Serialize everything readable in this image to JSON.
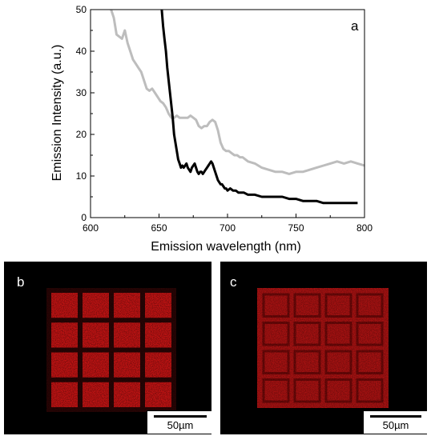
{
  "chart_data": {
    "type": "line",
    "panel_label": "a",
    "xlabel": "Emission wavelength (nm)",
    "ylabel": "Emission Intensity (a.u.)",
    "xlim": [
      600,
      800
    ],
    "ylim": [
      0,
      50
    ],
    "xticks": [
      600,
      650,
      700,
      750,
      800
    ],
    "yticks": [
      0,
      10,
      20,
      30,
      40,
      50
    ],
    "grid": false,
    "series": [
      {
        "color": "#bdbdbd",
        "x": [
          615,
          617,
          619,
          621,
          623,
          625,
          627,
          629,
          631,
          633,
          635,
          637,
          639,
          641,
          643,
          645,
          647,
          649,
          651,
          653,
          655,
          657,
          659,
          661,
          663,
          665,
          667,
          669,
          671,
          673,
          675,
          677,
          679,
          681,
          683,
          685,
          687,
          689,
          691,
          693,
          695,
          697,
          699,
          701,
          703,
          705,
          707,
          709,
          711,
          713,
          715,
          720,
          725,
          730,
          735,
          740,
          745,
          750,
          755,
          760,
          765,
          770,
          775,
          780,
          785,
          790,
          795,
          800
        ],
        "y": [
          50,
          48,
          44,
          43.5,
          43,
          45,
          42,
          40,
          38,
          37,
          36,
          35,
          33,
          31,
          30.5,
          31,
          30,
          29,
          28,
          27.5,
          26.5,
          25,
          24,
          24,
          24.5,
          24,
          24,
          24,
          24,
          24.5,
          24,
          23.5,
          22,
          21.5,
          22,
          22,
          23,
          23.5,
          23,
          21,
          18,
          16.5,
          16,
          16,
          15.5,
          15,
          15,
          14.5,
          14.5,
          14,
          13.5,
          13,
          12,
          11.5,
          11,
          11,
          10.5,
          11,
          11,
          11.5,
          12,
          12.5,
          13,
          13.5,
          13,
          13.5,
          13,
          12.5
        ]
      },
      {
        "color": "#000000",
        "x": [
          652,
          653,
          654,
          655,
          656,
          657,
          658,
          659,
          660,
          661,
          662,
          663,
          664,
          665,
          666,
          667,
          668,
          669,
          670,
          671,
          672,
          673,
          674,
          675,
          676,
          677,
          678,
          679,
          680,
          681,
          682,
          683,
          684,
          685,
          686,
          687,
          688,
          689,
          690,
          691,
          692,
          693,
          694,
          695,
          696,
          697,
          698,
          699,
          700,
          702,
          704,
          706,
          708,
          710,
          712,
          715,
          720,
          725,
          730,
          735,
          740,
          745,
          750,
          755,
          760,
          765,
          770,
          775,
          780,
          785,
          790,
          795
        ],
        "y": [
          50,
          46,
          43,
          40,
          36,
          33,
          30,
          27,
          24,
          20,
          18,
          16,
          14,
          13,
          12,
          12.5,
          12,
          12.5,
          13,
          12,
          11.5,
          11,
          12,
          12.5,
          13,
          12,
          11,
          10.5,
          11,
          11,
          10.5,
          11,
          11.5,
          12,
          12.5,
          13,
          13.5,
          13,
          12,
          11,
          10,
          9,
          8.5,
          8,
          8,
          7.5,
          7,
          7,
          6.5,
          7,
          6.5,
          6.5,
          6,
          6,
          6,
          5.5,
          5.5,
          5,
          5,
          5,
          5,
          4.5,
          4.5,
          4,
          4,
          4,
          3.5,
          3.5,
          3.5,
          3.5,
          3.5,
          3.5
        ]
      }
    ]
  },
  "images": [
    {
      "letter": "b",
      "scalebar": "50µm"
    },
    {
      "letter": "c",
      "scalebar": "50µm"
    }
  ]
}
